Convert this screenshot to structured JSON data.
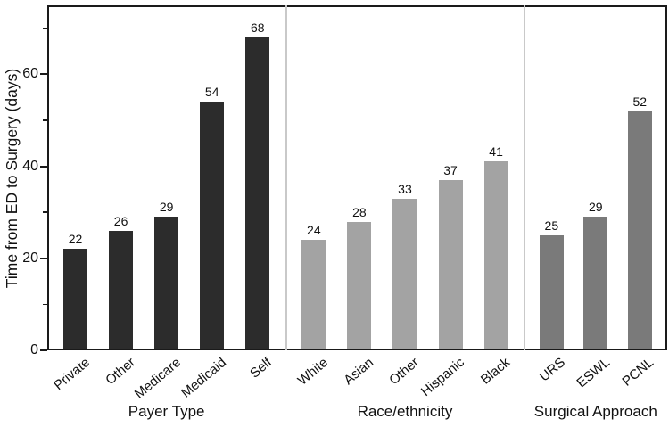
{
  "chart_data": {
    "type": "bar",
    "title": "",
    "ylabel": "Time from ED to Surgery (days)",
    "xlabel": "",
    "ylim": [
      0,
      75
    ],
    "yticks_major": [
      0,
      20,
      40,
      60
    ],
    "yticks_minor": [
      10,
      30,
      50,
      70
    ],
    "grid": false,
    "legend": "none",
    "groups": [
      {
        "label": "Payer Type",
        "bar_color": "#2c2c2c",
        "categories": [
          "Private",
          "Other",
          "Medicare",
          "Medicaid",
          "Self"
        ],
        "values": [
          22,
          26,
          29,
          54,
          68
        ]
      },
      {
        "label": "Race/ethnicity",
        "bar_color": "#a3a3a3",
        "categories": [
          "White",
          "Asian",
          "Other",
          "Hispanic",
          "Black"
        ],
        "values": [
          24,
          28,
          33,
          37,
          41
        ]
      },
      {
        "label": "Surgical Approach",
        "bar_color": "#7a7a7a",
        "categories": [
          "URS",
          "ESWL",
          "PCNL"
        ],
        "values": [
          25,
          29,
          52
        ]
      }
    ],
    "colors": {
      "axis": "#1a1a1a",
      "section_divider": "#c9c9c9",
      "text": "#111111",
      "background": "#ffffff"
    }
  }
}
